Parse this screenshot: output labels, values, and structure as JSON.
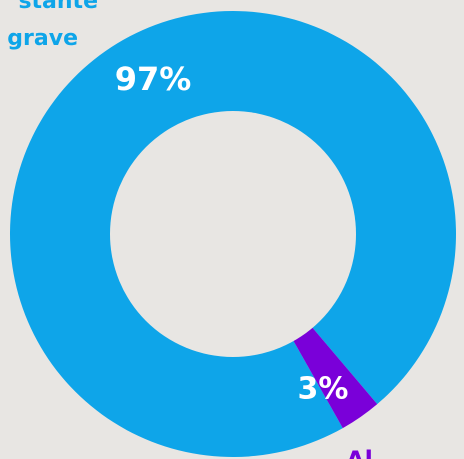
{
  "chart_data": {
    "type": "pie",
    "donut": true,
    "slices": [
      {
        "label_lines": [
          "stante",
          "grave"
        ],
        "value": 97,
        "value_label": "97%",
        "color": "#0ea5e9"
      },
      {
        "label_lines": [
          "Al"
        ],
        "value": 3,
        "value_label": "3%",
        "color": "#7a00d9"
      }
    ]
  },
  "colors": {
    "background": "#e8e6e3",
    "hole": "#e8e6e3",
    "value_label": "#ffffff"
  }
}
